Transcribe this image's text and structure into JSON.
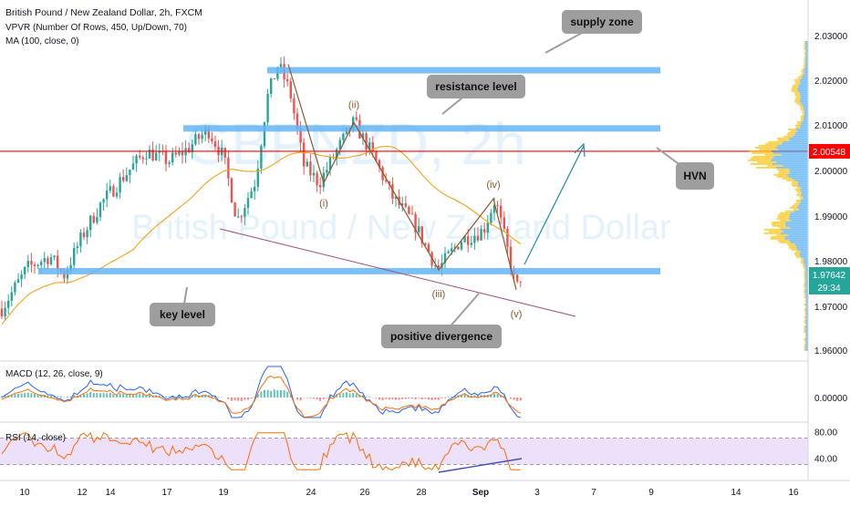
{
  "header": {
    "title": "British Pound / New Zealand Dollar, 2h, FXCM",
    "indicator_vpvr": "VPVR (Number Of Rows, 450, Up/Down, 70)",
    "indicator_ma": "MA (100, close, 0)"
  },
  "watermark": {
    "symbol": "GBPNZD, 2h",
    "name": "British Pound / New Zealand Dollar"
  },
  "colors": {
    "up": "#26a69a",
    "down": "#ef5350",
    "ma": "#f7a21b",
    "zone": "#64b5f6",
    "hvn_line": "#ff0000",
    "callout": "#9e9e9e",
    "price_tag": "#26a69a",
    "macd": "#2962ff",
    "signal": "#ff6d00",
    "rsi": "#ff6d00",
    "rsi_band": "#ede0fb"
  },
  "chart_data": [
    {
      "type": "candlestick",
      "title": "British Pound / New Zealand Dollar, 2h, FXCM",
      "x_ticks": [
        "10",
        "12",
        "14",
        "17",
        "19",
        "24",
        "26",
        "28",
        "Sep",
        "3",
        "7",
        "9",
        "14",
        "16"
      ],
      "ylim": [
        1.955,
        2.035
      ],
      "y_ticks": [
        "1.96000",
        "1.97000",
        "1.98000",
        "1.99000",
        "2.00000",
        "2.01000",
        "2.02000",
        "2.03000"
      ],
      "current_price": "1.97642",
      "countdown": "29:34",
      "hvn_price": "2.00548",
      "hvn_level": 2.0055,
      "wave_path": [
        {
          "label": "",
          "price": 2.0275
        },
        {
          "label": "(i)",
          "price": 1.9975
        },
        {
          "label": "(ii)",
          "price": 2.0128
        },
        {
          "label": "(iii)",
          "price": 1.9755
        },
        {
          "label": "(iv)",
          "price": 1.9935
        },
        {
          "label": "(v)",
          "price": 1.9705
        }
      ],
      "zones": [
        {
          "label": "supply zone",
          "low": 2.0255,
          "high": 2.0268
        },
        {
          "label": "resistance level",
          "low": 2.0108,
          "high": 2.0121
        },
        {
          "label": "key level",
          "low": 1.9745,
          "high": 1.976
        }
      ],
      "annotations": [
        "supply zone",
        "resistance level",
        "HVN",
        "key level",
        "positive divergence"
      ]
    },
    {
      "type": "line",
      "title": "MACD (12, 26, close, 9)",
      "y_ticks": [
        "0.00000"
      ]
    },
    {
      "type": "line",
      "title": "RSI (14, close)",
      "y_ticks": [
        "80.00",
        "40.00"
      ],
      "band": [
        30,
        70
      ]
    }
  ]
}
